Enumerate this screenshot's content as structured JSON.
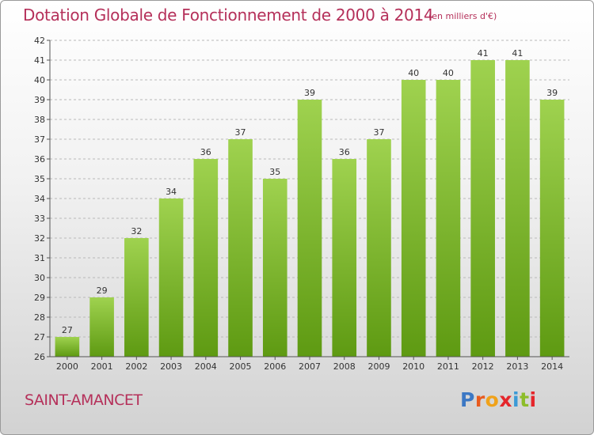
{
  "title": "Dotation Globale de Fonctionnement de 2000 à 2014",
  "unit": "(en milliers d'€)",
  "commune": "SAINT-AMANCET",
  "logo": {
    "letters": [
      "P",
      "r",
      "o",
      "x",
      "i",
      "t",
      "i"
    ]
  },
  "colors": {
    "title": "#b5305a",
    "bar_light": "#9fd24f",
    "bar_dark": "#5e9a12",
    "grid": "#b9b9b9"
  },
  "chart_data": {
    "type": "bar",
    "title": "Dotation Globale de Fonctionnement de 2000 à 2014",
    "subtitle": "(en milliers d'€)",
    "categories": [
      "2000",
      "2001",
      "2002",
      "2003",
      "2004",
      "2005",
      "2006",
      "2007",
      "2008",
      "2009",
      "2010",
      "2011",
      "2012",
      "2013",
      "2014"
    ],
    "values": [
      27,
      29,
      32,
      34,
      36,
      37,
      35,
      39,
      36,
      37,
      40,
      40,
      41,
      41,
      39
    ],
    "ylim": [
      26,
      42
    ],
    "yticks": [
      26,
      27,
      28,
      29,
      30,
      31,
      32,
      33,
      34,
      35,
      36,
      37,
      38,
      39,
      40,
      41,
      42
    ],
    "grid": "horizontal dashed",
    "data_labels": true,
    "xlabel": "",
    "ylabel": ""
  }
}
